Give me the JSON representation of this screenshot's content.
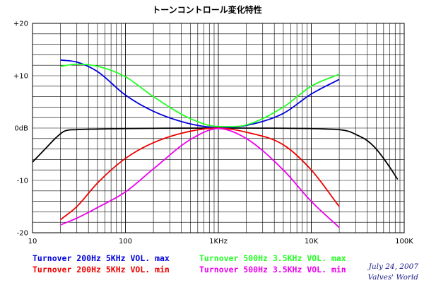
{
  "chart_data": {
    "type": "line",
    "title": "トーンコントロール変化特性",
    "xscale": "log",
    "xlim": [
      10,
      100000
    ],
    "ylim": [
      -20,
      20
    ],
    "x_tick_labels": [
      {
        "x": 10,
        "label": "10"
      },
      {
        "x": 100,
        "label": "100"
      },
      {
        "x": 1000,
        "label": "1KHz"
      },
      {
        "x": 10000,
        "label": "10K"
      },
      {
        "x": 100000,
        "label": "100K"
      }
    ],
    "y_tick_labels": [
      {
        "y": 20,
        "label": "+20"
      },
      {
        "y": 10,
        "label": "+10"
      },
      {
        "y": 0,
        "label": "0dB"
      },
      {
        "y": -10,
        "label": "-10"
      },
      {
        "y": -20,
        "label": "-20"
      }
    ],
    "grid": true,
    "series": [
      {
        "name": "Flat",
        "color": "#000000",
        "legend": false,
        "x": [
          10,
          14,
          18,
          22,
          30,
          50,
          100,
          1000,
          10000,
          15000,
          20000,
          25000,
          30000,
          40000,
          50000,
          60000,
          70000,
          85000
        ],
        "y": [
          -6.5,
          -3.8,
          -1.8,
          -0.6,
          -0.3,
          -0.2,
          -0.1,
          0,
          -0.1,
          -0.2,
          -0.3,
          -0.6,
          -1.2,
          -2.4,
          -4.0,
          -5.8,
          -7.5,
          -9.8
        ]
      },
      {
        "name": "Turnover 200Hz 5KHz VOL. max",
        "color": "#0000dd",
        "x": [
          20,
          30,
          50,
          100,
          200,
          500,
          1000,
          2000,
          5000,
          10000,
          20000
        ],
        "y": [
          13.0,
          12.6,
          10.8,
          6.3,
          3.2,
          0.8,
          0.1,
          0.5,
          2.8,
          6.5,
          9.3
        ]
      },
      {
        "name": "Turnover 200Hz 5KHz VOL. min",
        "color": "#ee0000",
        "x": [
          20,
          30,
          50,
          100,
          200,
          500,
          1000,
          2000,
          5000,
          10000,
          20000
        ],
        "y": [
          -17.5,
          -15.0,
          -10.5,
          -5.8,
          -2.8,
          -0.6,
          0.0,
          -0.8,
          -3.2,
          -8.0,
          -15.0
        ]
      },
      {
        "name": "Turnover 500Hz 3.5KHz VOL. max",
        "color": "#22ff22",
        "x": [
          20,
          30,
          50,
          100,
          200,
          500,
          1000,
          2000,
          5000,
          10000,
          20000
        ],
        "y": [
          11.8,
          12.2,
          11.8,
          9.8,
          6.0,
          1.8,
          0.3,
          0.6,
          4.0,
          8.0,
          10.3
        ]
      },
      {
        "name": "Turnover 500Hz 3.5KHz VOL. min",
        "color": "#ee00ee",
        "x": [
          20,
          30,
          50,
          100,
          200,
          500,
          1000,
          2000,
          5000,
          10000,
          20000
        ],
        "y": [
          -18.5,
          -17.2,
          -15.2,
          -12.2,
          -7.8,
          -2.2,
          -0.1,
          -2.0,
          -8.0,
          -14.0,
          -19.0
        ]
      }
    ]
  },
  "legend": [
    {
      "label": "Turnover 200Hz 5KHz VOL. max",
      "color": "#0000dd"
    },
    {
      "label": "Turnover 500Hz 3.5KHz VOL. max",
      "color": "#22ff22"
    },
    {
      "label": "Turnover 200Hz 5KHz VOL. min",
      "color": "#ee0000"
    },
    {
      "label": "Turnover 500Hz 3.5KHz VOL. min",
      "color": "#ee00ee"
    }
  ],
  "credit": {
    "date": "July 24, 2007",
    "author": "Valves' World"
  }
}
